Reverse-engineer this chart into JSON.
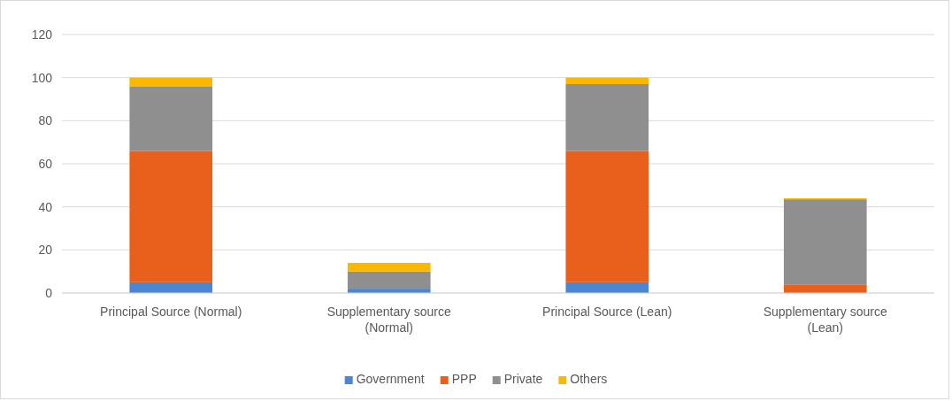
{
  "chart_data": {
    "type": "bar",
    "stacked": true,
    "categories": [
      "Principal Source (Normal)",
      "Supplementary source (Normal)",
      "Principal Source (Lean)",
      "Supplementary source (Lean)"
    ],
    "series": [
      {
        "name": "Government",
        "color": "#4a86d1",
        "values": [
          5,
          2,
          5,
          0
        ]
      },
      {
        "name": "PPP",
        "color": "#e8601c",
        "values": [
          61,
          0,
          61,
          4
        ]
      },
      {
        "name": "Private",
        "color": "#8f8f8f",
        "values": [
          30,
          8,
          31,
          39.5
        ]
      },
      {
        "name": "Others",
        "color": "#fbb800",
        "values": [
          4,
          4,
          3,
          0.5
        ]
      }
    ],
    "ylim": [
      0,
      120
    ],
    "yticks": [
      0,
      20,
      40,
      60,
      80,
      100,
      120
    ],
    "grid": "y",
    "legend": "bottom"
  }
}
